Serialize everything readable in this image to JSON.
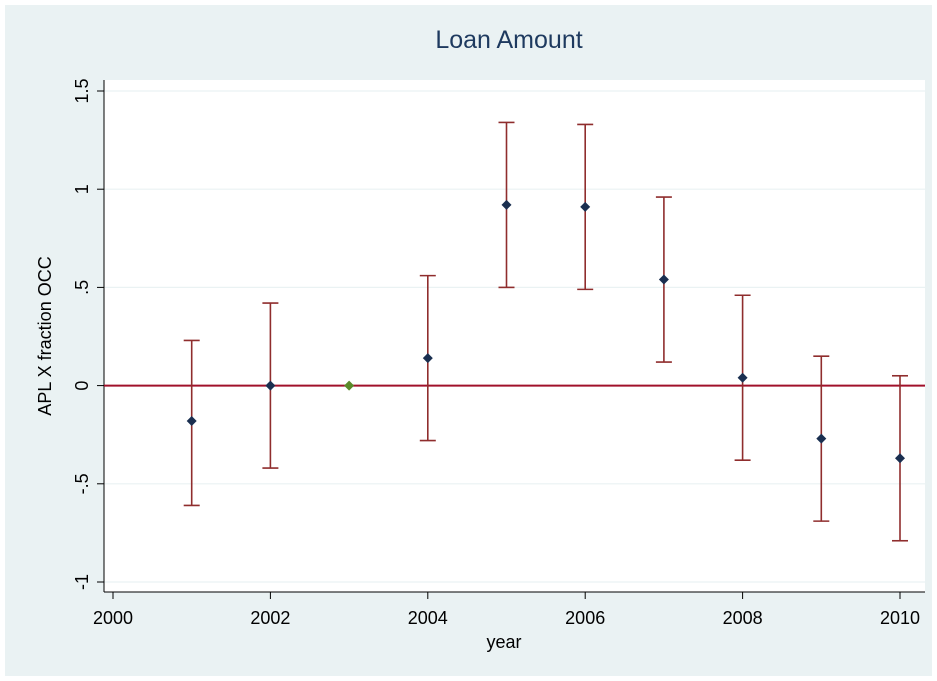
{
  "chart_data": {
    "type": "scatter",
    "title": "Loan Amount",
    "xlabel": "year",
    "ylabel": "APL X fraction OCC",
    "xlim": [
      2000,
      2010
    ],
    "ylim": [
      -1,
      1.5
    ],
    "xticks": [
      2000,
      2002,
      2004,
      2006,
      2008,
      2010
    ],
    "xtick_labels": [
      "2000",
      "2002",
      "2004",
      "2006",
      "2008",
      "2010"
    ],
    "yticks": [
      -1,
      -0.5,
      0,
      0.5,
      1,
      1.5
    ],
    "ytick_labels": [
      "-1",
      "-.5",
      "0",
      ".5",
      "1",
      "1.5"
    ],
    "grid": true,
    "legend": "none",
    "reference_line": {
      "y": 0
    },
    "points": [
      {
        "x": 2001,
        "y": -0.18,
        "lo": -0.61,
        "hi": 0.23
      },
      {
        "x": 2002,
        "y": 0.0,
        "lo": -0.42,
        "hi": 0.42
      },
      {
        "x": 2003,
        "y": 0.0,
        "omitted": true
      },
      {
        "x": 2004,
        "y": 0.14,
        "lo": -0.28,
        "hi": 0.56
      },
      {
        "x": 2005,
        "y": 0.92,
        "lo": 0.5,
        "hi": 1.34
      },
      {
        "x": 2006,
        "y": 0.91,
        "lo": 0.49,
        "hi": 1.33
      },
      {
        "x": 2007,
        "y": 0.54,
        "lo": 0.12,
        "hi": 0.96
      },
      {
        "x": 2008,
        "y": 0.04,
        "lo": -0.38,
        "hi": 0.46
      },
      {
        "x": 2009,
        "y": -0.27,
        "lo": -0.69,
        "hi": 0.15
      },
      {
        "x": 2010,
        "y": -0.37,
        "lo": -0.79,
        "hi": 0.05
      }
    ],
    "colors": {
      "background": "#eaf2f3",
      "plot_area": "#ffffff",
      "grid": "#eaf2f3",
      "marker": "#1a2f50",
      "omitted_marker": "#5a8a2a",
      "error_bar": "#8f2d2d",
      "reference_line": "#a0102a",
      "text": "#000000",
      "title": "#1e3a5f"
    }
  }
}
